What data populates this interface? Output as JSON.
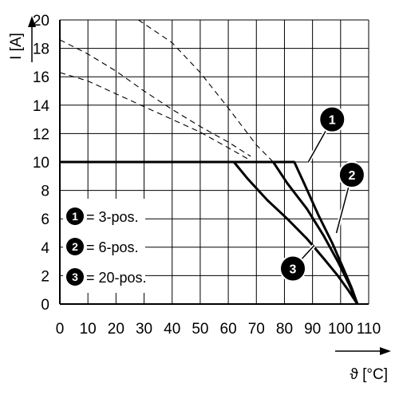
{
  "chart_data": {
    "type": "line",
    "xlabel": "ϑ [°C]",
    "ylabel": "I [A]",
    "xlim": [
      0,
      110
    ],
    "ylim": [
      0,
      20
    ],
    "x_ticks": [
      "0",
      "10",
      "20",
      "30",
      "40",
      "50",
      "60",
      "70",
      "80",
      "90",
      "100",
      "110"
    ],
    "y_ticks": [
      "0",
      "2",
      "4",
      "6",
      "8",
      "10",
      "12",
      "14",
      "16",
      "18",
      "20"
    ],
    "grid": true,
    "legend": {
      "placement": "bottom-left",
      "entries": [
        {
          "marker": "1",
          "label": "= 3-pos."
        },
        {
          "marker": "2",
          "label": "= 6-pos."
        },
        {
          "marker": "3",
          "label": "= 20-pos."
        }
      ]
    },
    "colors": {
      "line": "#000000",
      "grid": "#000000",
      "badge": "#000000"
    },
    "series": [
      {
        "name": "1",
        "points": [
          [
            0,
            10
          ],
          [
            83.5,
            10
          ],
          [
            87,
            8.5
          ],
          [
            92,
            6.3
          ],
          [
            97,
            4.3
          ],
          [
            101,
            2.5
          ],
          [
            104,
            1.1
          ],
          [
            106,
            0
          ]
        ],
        "projected_points": [
          [
            28,
            20
          ],
          [
            40,
            18.4
          ],
          [
            50,
            16.3
          ],
          [
            60,
            13.8
          ],
          [
            70,
            11.2
          ],
          [
            76,
            10
          ]
        ]
      },
      {
        "name": "2",
        "points": [
          [
            0,
            10
          ],
          [
            76,
            10
          ],
          [
            81,
            8.5
          ],
          [
            88,
            6.7
          ],
          [
            94,
            4.8
          ],
          [
            99,
            3.0
          ],
          [
            103,
            1.4
          ],
          [
            106,
            0
          ]
        ],
        "projected_points": [
          [
            0,
            18.6
          ],
          [
            10,
            17.6
          ],
          [
            20,
            16.4
          ],
          [
            30,
            15.0
          ],
          [
            40,
            13.7
          ],
          [
            50,
            12.5
          ],
          [
            60,
            11.4
          ],
          [
            68,
            10.4
          ]
        ]
      },
      {
        "name": "3",
        "points": [
          [
            0,
            10
          ],
          [
            62,
            10
          ],
          [
            67,
            8.8
          ],
          [
            74,
            7.3
          ],
          [
            81,
            6.0
          ],
          [
            88,
            4.6
          ],
          [
            94,
            3.2
          ],
          [
            99,
            2.0
          ],
          [
            103,
            0.9
          ],
          [
            106,
            0
          ]
        ],
        "projected_points": [
          [
            0,
            16.3
          ],
          [
            10,
            15.7
          ],
          [
            20,
            14.8
          ],
          [
            30,
            13.9
          ],
          [
            40,
            13.0
          ],
          [
            50,
            12.1
          ],
          [
            60,
            11.0
          ],
          [
            68,
            10.1
          ]
        ]
      }
    ],
    "callouts": [
      {
        "label": "1",
        "target": [
          88.5,
          10.0
        ],
        "bubble": [
          97,
          13.0
        ]
      },
      {
        "label": "2",
        "target": [
          98.5,
          5.0
        ],
        "bubble": [
          104,
          9.1
        ]
      },
      {
        "label": "3",
        "target": [
          90.5,
          4.1
        ],
        "bubble": [
          83,
          2.5
        ]
      }
    ]
  }
}
